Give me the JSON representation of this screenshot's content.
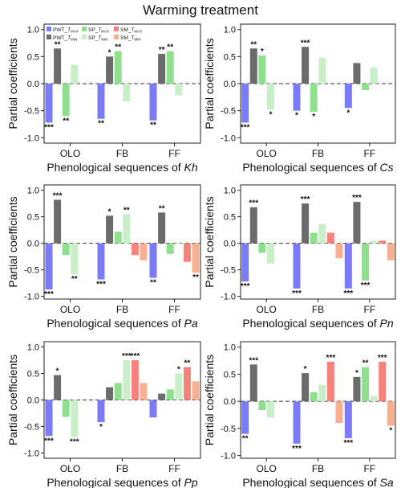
{
  "figure": {
    "title": "Warming treatment"
  },
  "legend": {
    "entries": [
      {
        "prefix": "PWT_",
        "var": "T",
        "sub": "MAX",
        "color": "#7b7bf5"
      },
      {
        "prefix": "SP_",
        "var": "T",
        "sub": "MAX",
        "color": "#8ee08e"
      },
      {
        "prefix": "SM_",
        "var": "T",
        "sub": "MAX",
        "color": "#f5837b"
      },
      {
        "prefix": "PWT_",
        "var": "T",
        "sub": "MIN",
        "color": "#6b6b6b"
      },
      {
        "prefix": "SP_",
        "var": "T",
        "sub": "MIN",
        "color": "#c8efc8"
      },
      {
        "prefix": "SM_",
        "var": "T",
        "sub": "MIN",
        "color": "#f8b090"
      }
    ]
  },
  "chart_data": [
    {
      "type": "bar",
      "species": "Kh",
      "xlabel_prefix": "Phenological sequences of ",
      "ylabel": "Partial coefficients",
      "categories": [
        "OLO",
        "FB",
        "FF"
      ],
      "ylim": [
        -1.1,
        1.1
      ],
      "yticks": [
        "1.0",
        "0.5",
        "0.0",
        "-0.5",
        "-1.0"
      ],
      "series": [
        {
          "name": "PWT_TMAX",
          "values": [
            -0.72,
            -0.65,
            -0.68
          ],
          "labels": [
            "***",
            "**",
            "**"
          ]
        },
        {
          "name": "PWT_TMIN",
          "values": [
            0.65,
            0.5,
            0.55
          ],
          "labels": [
            "**",
            "*",
            "**"
          ]
        },
        {
          "name": "SP_TMAX",
          "values": [
            -0.6,
            0.6,
            0.6
          ],
          "labels": [
            "**",
            "**",
            "**"
          ]
        },
        {
          "name": "SP_TMIN",
          "values": [
            0.35,
            -0.33,
            -0.22
          ],
          "labels": [
            "",
            "",
            ""
          ]
        },
        {
          "name": "SM_TMAX",
          "values": [
            0,
            0,
            0
          ],
          "labels": [
            "",
            "",
            ""
          ]
        },
        {
          "name": "SM_TMIN",
          "values": [
            0,
            0,
            0
          ],
          "labels": [
            "",
            "",
            ""
          ]
        }
      ]
    },
    {
      "type": "bar",
      "species": "Cs",
      "xlabel_prefix": "Phenological sequences of ",
      "ylabel": "Partial coefficients",
      "categories": [
        "OLO",
        "FB",
        "FF"
      ],
      "ylim": [
        -1.1,
        1.1
      ],
      "yticks": [
        "1.0",
        "0.5",
        "0.0",
        "-0.5",
        "-1.0"
      ],
      "series": [
        {
          "name": "PWT_TMAX",
          "values": [
            -0.72,
            -0.5,
            -0.45
          ],
          "labels": [
            "***",
            "*",
            "*"
          ]
        },
        {
          "name": "PWT_TMIN",
          "values": [
            0.65,
            0.68,
            0.38
          ],
          "labels": [
            "**",
            "***",
            ""
          ]
        },
        {
          "name": "SP_TMAX",
          "values": [
            0.52,
            -0.52,
            -0.12
          ],
          "labels": [
            "*",
            "*",
            ""
          ]
        },
        {
          "name": "SP_TMIN",
          "values": [
            -0.48,
            0.48,
            0.3
          ],
          "labels": [
            "*",
            "",
            ""
          ]
        },
        {
          "name": "SM_TMAX",
          "values": [
            0,
            0,
            0
          ],
          "labels": [
            "",
            "",
            ""
          ]
        },
        {
          "name": "SM_TMIN",
          "values": [
            0,
            0,
            0
          ],
          "labels": [
            "",
            "",
            ""
          ]
        }
      ]
    },
    {
      "type": "bar",
      "species": "Pa",
      "xlabel_prefix": "Phenological sequences of ",
      "ylabel": "Partial coefficients",
      "categories": [
        "OLO",
        "FB",
        "FF"
      ],
      "ylim": [
        -1.05,
        1.1
      ],
      "yticks": [
        "1.0",
        "0.5",
        "0.0",
        "-0.5",
        "-1.0"
      ],
      "series": [
        {
          "name": "PWT_TMAX",
          "values": [
            -0.87,
            -0.68,
            -0.65
          ],
          "labels": [
            "***",
            "***",
            "**"
          ]
        },
        {
          "name": "PWT_TMIN",
          "values": [
            0.82,
            0.52,
            0.58
          ],
          "labels": [
            "***",
            "*",
            "**"
          ]
        },
        {
          "name": "SP_TMAX",
          "values": [
            -0.22,
            0.22,
            -0.2
          ],
          "labels": [
            "",
            "",
            ""
          ]
        },
        {
          "name": "SP_TMIN",
          "values": [
            -0.58,
            0.55,
            0.02
          ],
          "labels": [
            "**",
            "**",
            ""
          ]
        },
        {
          "name": "SM_TMAX",
          "values": [
            0,
            -0.22,
            -0.35
          ],
          "labels": [
            "",
            "",
            ""
          ]
        },
        {
          "name": "SM_TMIN",
          "values": [
            0,
            -0.32,
            -0.55
          ],
          "labels": [
            "",
            "",
            "**"
          ]
        }
      ]
    },
    {
      "type": "bar",
      "species": "Pn",
      "xlabel_prefix": "Phenological sequences of ",
      "ylabel": "Partial coefficients",
      "categories": [
        "OLO",
        "FB",
        "FF"
      ],
      "ylim": [
        -1.05,
        1.1
      ],
      "yticks": [
        "1.0",
        "0.5",
        "0.0",
        "-0.5",
        "-1.0"
      ],
      "series": [
        {
          "name": "PWT_TMAX",
          "values": [
            -0.72,
            -0.85,
            -0.85
          ],
          "labels": [
            "***",
            "***",
            "***"
          ]
        },
        {
          "name": "PWT_TMIN",
          "values": [
            0.68,
            0.75,
            0.78
          ],
          "labels": [
            "***",
            "***",
            "***"
          ]
        },
        {
          "name": "SP_TMAX",
          "values": [
            -0.18,
            0.2,
            -0.7
          ],
          "labels": [
            "",
            "",
            "***"
          ]
        },
        {
          "name": "SP_TMIN",
          "values": [
            -0.38,
            0.36,
            0.05
          ],
          "labels": [
            "",
            "",
            ""
          ]
        },
        {
          "name": "SM_TMAX",
          "values": [
            0,
            0.2,
            0.05
          ],
          "labels": [
            "",
            "",
            ""
          ]
        },
        {
          "name": "SM_TMIN",
          "values": [
            0,
            -0.28,
            -0.32
          ],
          "labels": [
            "",
            "",
            ""
          ]
        }
      ]
    },
    {
      "type": "bar",
      "species": "Pp",
      "xlabel_prefix": "Phenological sequences of ",
      "ylabel": "Partial coefficients",
      "categories": [
        "OLO",
        "FB",
        "FF"
      ],
      "ylim": [
        -1.1,
        1.1
      ],
      "yticks": [
        "1.0",
        "0.5",
        "0.0",
        "-0.5",
        "-1.0"
      ],
      "series": [
        {
          "name": "PWT_TMAX",
          "values": [
            -0.68,
            -0.42,
            -0.33
          ],
          "labels": [
            "***",
            "*",
            ""
          ]
        },
        {
          "name": "PWT_TMIN",
          "values": [
            0.47,
            0.24,
            0.12
          ],
          "labels": [
            "*",
            "",
            ""
          ]
        },
        {
          "name": "SP_TMAX",
          "values": [
            -0.32,
            0.32,
            0.2
          ],
          "labels": [
            "",
            "",
            ""
          ]
        },
        {
          "name": "SP_TMIN",
          "values": [
            -0.7,
            0.75,
            0.5
          ],
          "labels": [
            "***",
            "***",
            "*"
          ]
        },
        {
          "name": "SM_TMAX",
          "values": [
            0,
            0.75,
            0.62
          ],
          "labels": [
            "",
            "***",
            "**"
          ]
        },
        {
          "name": "SM_TMIN",
          "values": [
            0,
            0.32,
            0.35
          ],
          "labels": [
            "",
            "",
            ""
          ]
        }
      ]
    },
    {
      "type": "bar",
      "species": "Sa",
      "xlabel_prefix": "Phenological sequences of ",
      "ylabel": "Partial coefficients",
      "categories": [
        "OLO",
        "FB",
        "FF"
      ],
      "ylim": [
        -1.05,
        1.1
      ],
      "yticks": [
        "1.0",
        "0.5",
        "0.0",
        "-0.5",
        "-1.0"
      ],
      "series": [
        {
          "name": "PWT_TMAX",
          "values": [
            -0.6,
            -0.78,
            -0.68
          ],
          "labels": [
            "**",
            "***",
            "***"
          ]
        },
        {
          "name": "PWT_TMIN",
          "values": [
            0.68,
            0.52,
            0.45
          ],
          "labels": [
            "***",
            "*",
            "*"
          ]
        },
        {
          "name": "SP_TMAX",
          "values": [
            -0.16,
            0.17,
            0.63
          ],
          "labels": [
            "",
            "",
            "**"
          ]
        },
        {
          "name": "SP_TMIN",
          "values": [
            -0.3,
            0.3,
            0.1
          ],
          "labels": [
            "",
            "",
            ""
          ]
        },
        {
          "name": "SM_TMAX",
          "values": [
            0,
            0.73,
            0.73
          ],
          "labels": [
            "",
            "***",
            "***"
          ]
        },
        {
          "name": "SM_TMIN",
          "values": [
            0,
            -0.4,
            -0.45
          ],
          "labels": [
            "",
            "",
            "*"
          ]
        }
      ]
    }
  ]
}
